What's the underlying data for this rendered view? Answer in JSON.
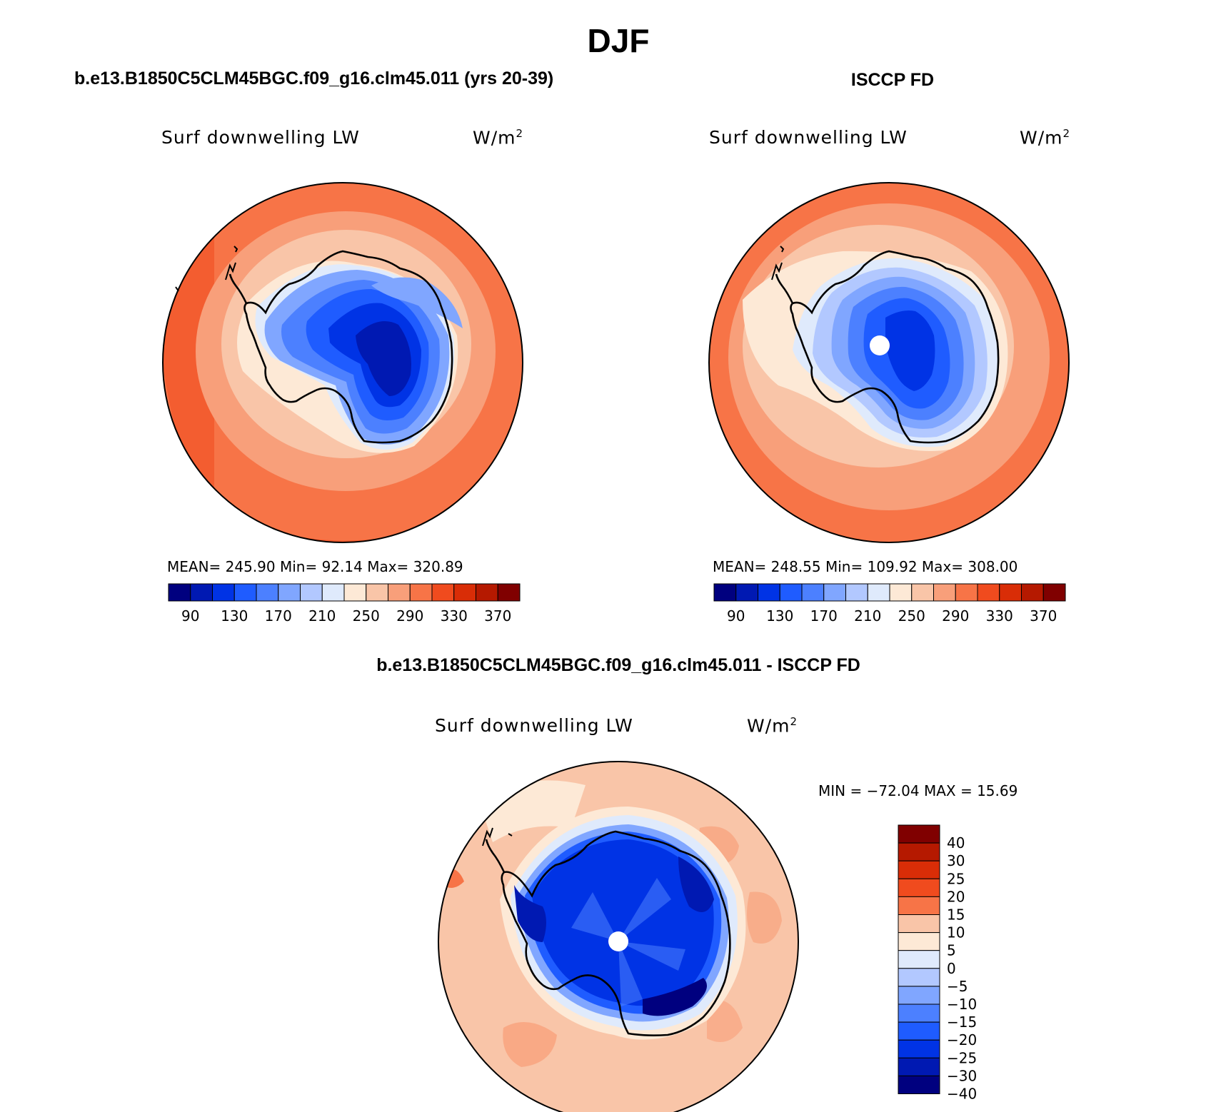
{
  "main_title": "DJF",
  "panels": [
    {
      "id": "model",
      "title": "b.e13.B1850C5CLM45BGC.f09_g16.clm45.011 (yrs 20-39)",
      "variable": "Surf downwelling LW",
      "units_base": "W/m",
      "units_exp": "2",
      "stats": "MEAN= 245.90   Min=  92.14   Max= 320.89",
      "colorbar": {
        "colors": [
          "#00007f",
          "#0019b2",
          "#0033e5",
          "#1f5cff",
          "#4c80ff",
          "#80a6ff",
          "#b2c8ff",
          "#dfeafc",
          "#fde9d6",
          "#f9c5a8",
          "#f89f7a",
          "#f77447",
          "#f04b1e",
          "#d92d07",
          "#b51900",
          "#800000"
        ],
        "labels": [
          "90",
          "130",
          "170",
          "210",
          "250",
          "290",
          "330",
          "370"
        ]
      }
    },
    {
      "id": "obs",
      "title": "ISCCP FD",
      "variable": "Surf downwelling LW",
      "units_base": "W/m",
      "units_exp": "2",
      "stats": "MEAN= 248.55   Min= 109.92   Max= 308.00",
      "colorbar": {
        "colors": [
          "#00007f",
          "#0019b2",
          "#0033e5",
          "#1f5cff",
          "#4c80ff",
          "#80a6ff",
          "#b2c8ff",
          "#dfeafc",
          "#fde9d6",
          "#f9c5a8",
          "#f89f7a",
          "#f77447",
          "#f04b1e",
          "#d92d07",
          "#b51900",
          "#800000"
        ],
        "labels": [
          "90",
          "130",
          "170",
          "210",
          "250",
          "290",
          "330",
          "370"
        ]
      }
    },
    {
      "id": "diff",
      "title": "b.e13.B1850C5CLM45BGC.f09_g16.clm45.011 - ISCCP FD",
      "variable": "Surf downwelling LW",
      "units_base": "W/m",
      "units_exp": "2",
      "minmax": "MIN = −72.04 MAX =  15.69",
      "colorbar": {
        "colors": [
          "#00007f",
          "#0019b2",
          "#0033e5",
          "#1f5cff",
          "#4c80ff",
          "#80a6ff",
          "#b2c8ff",
          "#dfeafc",
          "#fde9d6",
          "#f9c5a8",
          "#f77447",
          "#f04b1e",
          "#d92d07",
          "#b51900",
          "#800000"
        ],
        "labels": [
          "40",
          "30",
          "25",
          "20",
          "15",
          "10",
          "5",
          "0",
          "−5",
          "−10",
          "−15",
          "−20",
          "−25",
          "−30",
          "−40"
        ]
      }
    }
  ],
  "colors": {
    "land_outline": "#000000",
    "missing": "#ffffff"
  }
}
